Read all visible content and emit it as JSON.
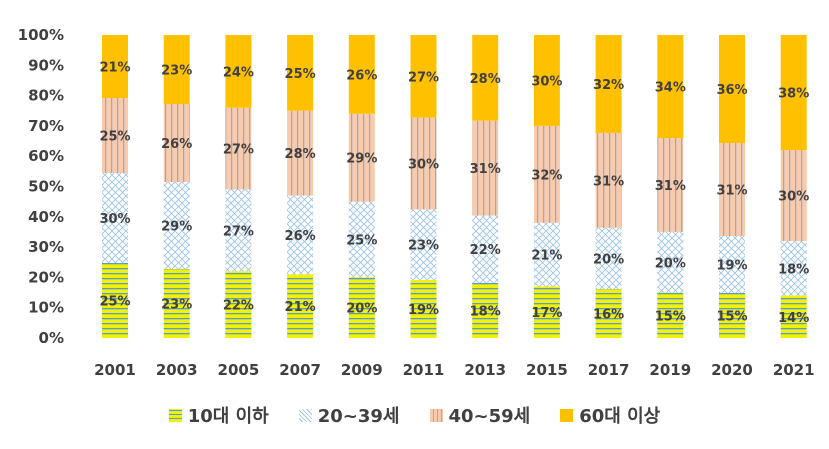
{
  "chart_data": {
    "type": "bar",
    "stacked": true,
    "percent": true,
    "categories": [
      "2001",
      "2003",
      "2005",
      "2007",
      "2009",
      "2011",
      "2013",
      "2015",
      "2017",
      "2019",
      "2020",
      "2021"
    ],
    "series": [
      {
        "name": "10대 이하",
        "color": "#f2f200",
        "pattern": "horizontal-lines",
        "values": [
          25,
          23,
          22,
          21,
          20,
          19,
          18,
          17,
          16,
          15,
          15,
          14
        ]
      },
      {
        "name": "20~39세",
        "color": "#bdd7ee",
        "pattern": "crosshatch-dots",
        "values": [
          30,
          29,
          27,
          26,
          25,
          23,
          22,
          21,
          20,
          20,
          19,
          18
        ]
      },
      {
        "name": "40~59세",
        "color": "#f4b8a8",
        "pattern": "vertical-lines",
        "values": [
          25,
          26,
          27,
          28,
          29,
          30,
          31,
          32,
          31,
          31,
          31,
          30
        ]
      },
      {
        "name": "60대 이상",
        "color": "#ffc000",
        "pattern": "solid",
        "values": [
          21,
          23,
          24,
          25,
          26,
          27,
          28,
          30,
          32,
          34,
          36,
          38
        ]
      }
    ],
    "yticks": [
      "0%",
      "10%",
      "20%",
      "30%",
      "40%",
      "50%",
      "60%",
      "70%",
      "80%",
      "90%",
      "100%"
    ],
    "ylim": [
      0,
      100
    ],
    "grid": false,
    "legend_position": "bottom"
  }
}
